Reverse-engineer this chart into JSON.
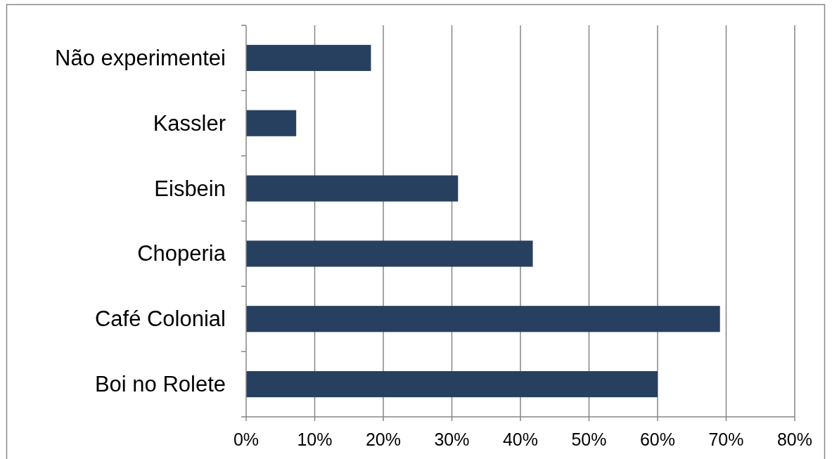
{
  "chart_data": {
    "type": "bar",
    "orientation": "horizontal",
    "categories": [
      "Não experimentei",
      "Kassler",
      "Eisbein",
      "Choperia",
      "Café Colonial",
      "Boi no Rolete"
    ],
    "values": [
      18.2,
      7.3,
      30.9,
      41.8,
      69.1,
      60
    ],
    "color": "#27405f",
    "xlim": [
      0,
      80
    ],
    "xticks": [
      {
        "value": 0,
        "label": "0%"
      },
      {
        "value": 10,
        "label": "10%"
      },
      {
        "value": 20,
        "label": "20%"
      },
      {
        "value": 30,
        "label": "30%"
      },
      {
        "value": 40,
        "label": "40%"
      },
      {
        "value": 50,
        "label": "50%"
      },
      {
        "value": 60,
        "label": "60%"
      },
      {
        "value": 70,
        "label": "70%"
      },
      {
        "value": 80,
        "label": "80%"
      }
    ],
    "grid": "x"
  }
}
